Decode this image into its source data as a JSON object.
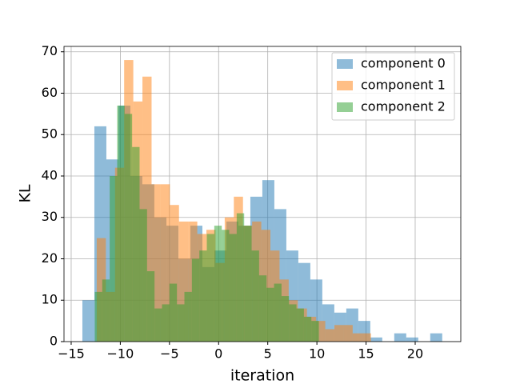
{
  "chart_data": {
    "type": "histogram",
    "xlabel": "iteration",
    "ylabel": "KL",
    "xlim": [
      -15.73,
      24.64
    ],
    "ylim": [
      0,
      71.3
    ],
    "xticks": [
      {
        "value": -15,
        "label": "−15"
      },
      {
        "value": -10,
        "label": "−10"
      },
      {
        "value": -5,
        "label": "−5"
      },
      0,
      5,
      10,
      15,
      20
    ],
    "yticks": [
      0,
      10,
      20,
      30,
      40,
      50,
      60,
      70
    ],
    "grid": true,
    "legend": "upper right",
    "alpha": 0.5,
    "series": [
      {
        "name": "component 0",
        "color": "#1f77b4",
        "bins": [
          -13.86,
          -12.64,
          -11.42,
          -10.2,
          -8.98,
          -7.76,
          -6.54,
          -5.31,
          -4.09,
          -2.87,
          -1.65,
          -0.43,
          0.79,
          2.01,
          3.23,
          4.45,
          5.67,
          6.89,
          8.11,
          9.33,
          10.55,
          11.77,
          12.99,
          14.21,
          15.43,
          16.65,
          17.87,
          19.09,
          20.31,
          21.53,
          22.75
        ],
        "values": [
          10,
          52,
          44,
          57,
          40,
          38,
          30,
          28,
          20,
          28,
          18,
          22,
          29,
          28,
          35,
          39,
          32,
          22,
          19,
          15,
          9,
          7,
          8,
          5,
          1,
          0,
          2,
          1,
          0,
          2
        ]
      },
      {
        "name": "component 1",
        "color": "#ff7f0e",
        "bins": [
          -12.4,
          -11.47,
          -10.54,
          -9.61,
          -8.68,
          -7.75,
          -6.82,
          -5.89,
          -4.96,
          -4.03,
          -3.1,
          -2.17,
          -1.24,
          -0.31,
          0.62,
          1.55,
          2.48,
          3.41,
          4.34,
          5.27,
          6.2,
          7.13,
          8.06,
          8.99,
          9.92,
          10.85,
          11.78,
          12.71,
          13.64,
          14.57,
          15.5
        ],
        "values": [
          25,
          12,
          42,
          68,
          58,
          64,
          38,
          38,
          33,
          29,
          29,
          26,
          27,
          19,
          30,
          35,
          28,
          29,
          27,
          22,
          15,
          10,
          8,
          6,
          5,
          3,
          4,
          4,
          2,
          2
        ]
      },
      {
        "name": "component 2",
        "color": "#2ca02c",
        "bins": [
          -12.6,
          -11.84,
          -11.08,
          -10.32,
          -9.56,
          -8.8,
          -8.04,
          -7.28,
          -6.52,
          -5.76,
          -5.0,
          -4.24,
          -3.48,
          -2.72,
          -1.96,
          -1.2,
          -0.44,
          0.32,
          1.08,
          1.84,
          2.6,
          3.36,
          4.12,
          4.88,
          5.64,
          6.4,
          7.16,
          7.92,
          8.68,
          9.44,
          10.2
        ],
        "values": [
          12,
          15,
          40,
          57,
          55,
          47,
          32,
          17,
          8,
          9,
          14,
          9,
          12,
          20,
          22,
          26,
          28,
          27,
          26,
          31,
          28,
          22,
          16,
          13,
          14,
          11,
          9,
          8,
          6,
          5
        ]
      }
    ]
  }
}
